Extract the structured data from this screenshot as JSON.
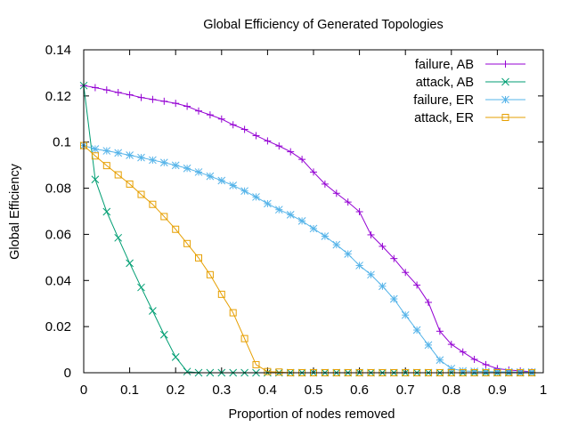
{
  "chart_data": {
    "type": "line",
    "title": "Global Efficiency of Generated Topologies",
    "xlabel": "Proportion of nodes removed",
    "ylabel": "Global Efficiency",
    "xlim": [
      0,
      1
    ],
    "ylim": [
      0,
      0.14
    ],
    "x_ticks": [
      0,
      0.1,
      0.2,
      0.3,
      0.4,
      0.5,
      0.6,
      0.7,
      0.8,
      0.9,
      1
    ],
    "x_tick_labels": [
      "0",
      "0.1",
      "0.2",
      "0.3",
      "0.4",
      "0.5",
      "0.6",
      "0.7",
      "0.8",
      "0.9",
      "1"
    ],
    "y_ticks": [
      0,
      0.02,
      0.04,
      0.06,
      0.08,
      0.1,
      0.12,
      0.14
    ],
    "y_tick_labels": [
      "0",
      "0.02",
      "0.04",
      "0.06",
      "0.08",
      "0.1",
      "0.12",
      "0.14"
    ],
    "grid": false,
    "legend_position": "top-right",
    "series": [
      {
        "name": "failure, AB",
        "color": "#9400d3",
        "marker": "plus",
        "x": [
          0,
          0.025,
          0.05,
          0.075,
          0.1,
          0.125,
          0.15,
          0.175,
          0.2,
          0.225,
          0.25,
          0.275,
          0.3,
          0.325,
          0.35,
          0.375,
          0.4,
          0.425,
          0.45,
          0.475,
          0.5,
          0.525,
          0.55,
          0.575,
          0.6,
          0.625,
          0.65,
          0.675,
          0.7,
          0.725,
          0.75,
          0.775,
          0.8,
          0.825,
          0.85,
          0.875,
          0.9,
          0.925,
          0.95,
          0.975
        ],
        "y": [
          0.1245,
          0.1236,
          0.1226,
          0.1215,
          0.1205,
          0.1193,
          0.1185,
          0.1177,
          0.1168,
          0.1155,
          0.1135,
          0.1118,
          0.11,
          0.1075,
          0.1055,
          0.1028,
          0.1005,
          0.0983,
          0.0958,
          0.0925,
          0.087,
          0.0818,
          0.0778,
          0.074,
          0.0698,
          0.0598,
          0.0548,
          0.0495,
          0.0435,
          0.038,
          0.0305,
          0.018,
          0.0123,
          0.009,
          0.0058,
          0.0035,
          0.0018,
          0.0012,
          0.0008,
          0.0004
        ]
      },
      {
        "name": "attack, AB",
        "color": "#009e73",
        "marker": "cross",
        "x": [
          0,
          0.025,
          0.05,
          0.075,
          0.1,
          0.125,
          0.15,
          0.175,
          0.2,
          0.225,
          0.25,
          0.275,
          0.3,
          0.325,
          0.35,
          0.375,
          0.4,
          0.425,
          0.45,
          0.475,
          0.5,
          0.525,
          0.55,
          0.575,
          0.6,
          0.625,
          0.65,
          0.675,
          0.7,
          0.725,
          0.75,
          0.775,
          0.8,
          0.825,
          0.85,
          0.875,
          0.9,
          0.925,
          0.95,
          0.975
        ],
        "y": [
          0.1245,
          0.0838,
          0.0698,
          0.0585,
          0.0475,
          0.037,
          0.0268,
          0.0165,
          0.0068,
          0.0005,
          0,
          0,
          0,
          0,
          0,
          0,
          0,
          0,
          0,
          0,
          0,
          0,
          0,
          0,
          0,
          0,
          0,
          0,
          0,
          0,
          0,
          0,
          0,
          0,
          0,
          0,
          0,
          0,
          0,
          0
        ]
      },
      {
        "name": "failure, ER",
        "color": "#56b4e9",
        "marker": "star",
        "x": [
          0,
          0.025,
          0.05,
          0.075,
          0.1,
          0.125,
          0.15,
          0.175,
          0.2,
          0.225,
          0.25,
          0.275,
          0.3,
          0.325,
          0.35,
          0.375,
          0.4,
          0.425,
          0.45,
          0.475,
          0.5,
          0.525,
          0.55,
          0.575,
          0.6,
          0.625,
          0.65,
          0.675,
          0.7,
          0.725,
          0.75,
          0.775,
          0.8,
          0.825,
          0.85,
          0.875,
          0.9,
          0.925,
          0.95,
          0.975
        ],
        "y": [
          0.0985,
          0.097,
          0.0962,
          0.0953,
          0.0943,
          0.0933,
          0.0922,
          0.0911,
          0.0899,
          0.0886,
          0.087,
          0.0852,
          0.0833,
          0.0812,
          0.0788,
          0.0762,
          0.0733,
          0.0707,
          0.0685,
          0.0658,
          0.0625,
          0.0592,
          0.0555,
          0.0515,
          0.0465,
          0.0425,
          0.0375,
          0.032,
          0.025,
          0.0185,
          0.012,
          0.0055,
          0.0018,
          0.0008,
          0.0006,
          0.0005,
          0.0004,
          0.0004,
          0.0003,
          0.0003
        ]
      },
      {
        "name": "attack, ER",
        "color": "#e69f00",
        "marker": "square",
        "x": [
          0,
          0.025,
          0.05,
          0.075,
          0.1,
          0.125,
          0.15,
          0.175,
          0.2,
          0.225,
          0.25,
          0.275,
          0.3,
          0.325,
          0.35,
          0.375,
          0.4,
          0.425,
          0.45,
          0.475,
          0.5,
          0.525,
          0.55,
          0.575,
          0.6,
          0.625,
          0.65,
          0.675,
          0.7,
          0.725,
          0.75,
          0.775,
          0.8,
          0.825,
          0.85,
          0.875,
          0.9,
          0.925,
          0.95,
          0.975
        ],
        "y": [
          0.0985,
          0.094,
          0.0898,
          0.0858,
          0.0818,
          0.0773,
          0.073,
          0.0677,
          0.0622,
          0.056,
          0.0498,
          0.0425,
          0.034,
          0.026,
          0.0148,
          0.0035,
          0.0005,
          0.0003,
          0,
          0,
          0,
          0,
          0,
          0,
          0,
          0,
          0,
          0,
          0,
          0,
          0,
          0,
          0,
          0,
          0,
          0,
          0,
          0,
          0,
          0
        ]
      }
    ]
  }
}
